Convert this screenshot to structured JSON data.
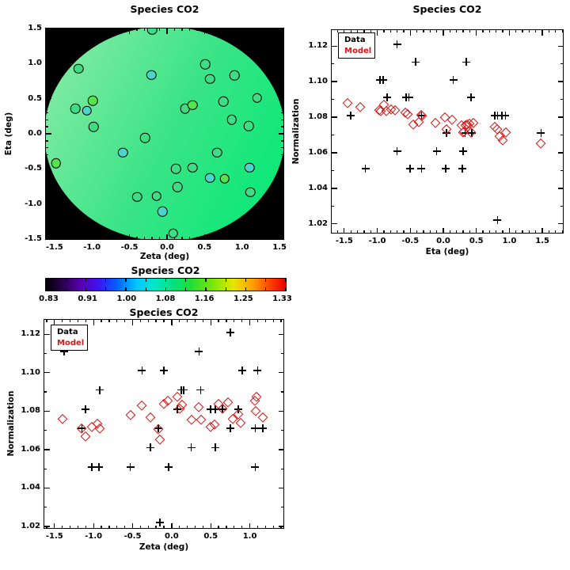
{
  "figure": {
    "background": "#ffffff",
    "frame_color": "#000000",
    "model_color": "#dc1414"
  },
  "chart_data": [
    {
      "type": "map",
      "title": "Species CO2",
      "xlabel": "Zeta (deg)",
      "ylabel": "Eta (deg)",
      "xrange": [
        -1.614,
        1.551
      ],
      "yrange": [
        -1.5,
        1.5
      ],
      "xminor": 0.1,
      "yminor": 0.1,
      "xticks": {
        "values": [
          -1.5,
          -1.0,
          -0.5,
          0.0,
          0.5,
          1.0,
          1.5
        ],
        "labels": [
          "-1.5",
          "-1.0",
          "-0.5",
          "0.0",
          "0.5",
          "1.0",
          "1.5"
        ]
      },
      "yticks": {
        "values": [
          -1.5,
          -1.0,
          -0.5,
          0.0,
          0.5,
          1.0,
          1.5
        ],
        "labels": [
          "-1.5",
          "-1.0",
          "-0.5",
          "0.0",
          "0.5",
          "1.0",
          "1.5"
        ]
      },
      "background": "#000000",
      "disk_gradient": [
        "#8feca8",
        "#3ce487",
        "#00e973"
      ],
      "points": [
        {
          "zeta": -0.2,
          "eta": 1.48,
          "fill": "#3fdc86"
        },
        {
          "zeta": -1.18,
          "eta": 0.93,
          "fill": "#3fdc86"
        },
        {
          "zeta": -0.21,
          "eta": 0.84,
          "fill": "#49d4cc"
        },
        {
          "zeta": 0.51,
          "eta": 0.99,
          "fill": "#3fdc86"
        },
        {
          "zeta": 0.57,
          "eta": 0.78,
          "fill": "#3fdc86"
        },
        {
          "zeta": 0.9,
          "eta": 0.83,
          "fill": "#3fdc86"
        },
        {
          "zeta": 1.2,
          "eta": 0.51,
          "fill": "#3fdc86"
        },
        {
          "zeta": -0.99,
          "eta": 0.47,
          "fill": "#55e34e"
        },
        {
          "zeta": -1.22,
          "eta": 0.36,
          "fill": "#3fdc86"
        },
        {
          "zeta": -1.07,
          "eta": 0.33,
          "fill": "#49d4cc"
        },
        {
          "zeta": 0.24,
          "eta": 0.36,
          "fill": "#3fdc86"
        },
        {
          "zeta": 0.34,
          "eta": 0.41,
          "fill": "#55e34e"
        },
        {
          "zeta": 0.75,
          "eta": 0.46,
          "fill": "#3fdc86"
        },
        {
          "zeta": 0.86,
          "eta": 0.2,
          "fill": "#3fdc86"
        },
        {
          "zeta": 1.09,
          "eta": 0.11,
          "fill": "#3fdc86"
        },
        {
          "zeta": -0.98,
          "eta": 0.1,
          "fill": "#3fdc86"
        },
        {
          "zeta": -0.29,
          "eta": -0.06,
          "fill": "#3fdc86"
        },
        {
          "zeta": -0.59,
          "eta": -0.27,
          "fill": "#49d4cc"
        },
        {
          "zeta": 0.67,
          "eta": -0.27,
          "fill": "#3fdc86"
        },
        {
          "zeta": -1.48,
          "eta": -0.42,
          "fill": "#55e34e"
        },
        {
          "zeta": 0.12,
          "eta": -0.5,
          "fill": "#3fdc86"
        },
        {
          "zeta": 0.34,
          "eta": -0.48,
          "fill": "#3fdc86"
        },
        {
          "zeta": 1.1,
          "eta": -0.48,
          "fill": "#49d4cc"
        },
        {
          "zeta": 0.57,
          "eta": -0.63,
          "fill": "#49d4cc"
        },
        {
          "zeta": 0.77,
          "eta": -0.64,
          "fill": "#55e34e"
        },
        {
          "zeta": 0.14,
          "eta": -0.76,
          "fill": "#3fdc86"
        },
        {
          "zeta": 1.11,
          "eta": -0.83,
          "fill": "#3fdc86"
        },
        {
          "zeta": -0.4,
          "eta": -0.9,
          "fill": "#3fdc86"
        },
        {
          "zeta": -0.14,
          "eta": -0.89,
          "fill": "#3fdc86"
        },
        {
          "zeta": -0.06,
          "eta": -1.11,
          "fill": "#49d4cc"
        },
        {
          "zeta": 0.08,
          "eta": -1.42,
          "fill": "#3fdc86"
        }
      ]
    },
    {
      "type": "scatter",
      "title": "Species CO2",
      "xlabel": "Eta (deg)",
      "ylabel": "Normalization",
      "xrange": [
        -1.69,
        1.81
      ],
      "yrange": [
        1.015,
        1.129
      ],
      "xminor": 0.1,
      "yminor": 0.01,
      "xticks": {
        "values": [
          -1.5,
          -1.0,
          -0.5,
          0.0,
          0.5,
          1.0,
          1.5
        ],
        "labels": [
          "-1.5",
          "-1.0",
          "-0.5",
          "0.0",
          "0.5",
          "1.0",
          "1.5"
        ]
      },
      "yticks": {
        "values": [
          1.02,
          1.04,
          1.06,
          1.08,
          1.1,
          1.12
        ],
        "labels": [
          "1.02",
          "1.04",
          "1.06",
          "1.08",
          "1.10",
          "1.12"
        ]
      },
      "legend": {
        "data_label": "Data",
        "model_label": "Model"
      },
      "series": [
        {
          "name": "Data",
          "marker": "plus",
          "color": "#000000",
          "x": [
            -1.4,
            -1.18,
            -0.96,
            -0.91,
            -0.85,
            -0.7,
            -0.7,
            -0.56,
            -0.52,
            -0.5,
            -0.42,
            -0.33,
            -0.33,
            -0.1,
            0.05,
            0.04,
            0.15,
            0.3,
            0.29,
            0.35,
            0.42,
            0.33,
            0.43,
            0.78,
            0.82,
            0.89,
            0.94,
            0.82,
            1.48
          ],
          "y": [
            1.081,
            1.051,
            1.101,
            1.101,
            1.091,
            1.121,
            1.061,
            1.091,
            1.091,
            1.051,
            1.111,
            1.081,
            1.051,
            1.061,
            1.071,
            1.051,
            1.101,
            1.061,
            1.051,
            1.111,
            1.091,
            1.071,
            1.071,
            1.081,
            1.081,
            1.081,
            1.081,
            1.022,
            1.071
          ]
        },
        {
          "name": "Model",
          "marker": "diamond",
          "color": "#dc1414",
          "x": [
            -1.45,
            -1.26,
            -0.97,
            -0.95,
            -0.9,
            -0.86,
            -0.79,
            -0.73,
            -0.57,
            -0.54,
            -0.45,
            -0.37,
            -0.34,
            -0.32,
            -0.12,
            0.02,
            0.05,
            0.13,
            0.28,
            0.3,
            0.31,
            0.33,
            0.36,
            0.4,
            0.42,
            0.46,
            0.78,
            0.81,
            0.85,
            0.9,
            0.95,
            1.48
          ],
          "y": [
            1.088,
            1.086,
            1.084,
            1.0835,
            1.087,
            1.0835,
            1.0845,
            1.084,
            1.0825,
            1.082,
            1.076,
            1.0775,
            1.0815,
            1.081,
            1.077,
            1.08,
            1.0735,
            1.0785,
            1.0755,
            1.0715,
            1.072,
            1.0755,
            1.076,
            1.0765,
            1.0715,
            1.077,
            1.0745,
            1.0735,
            1.0695,
            1.067,
            1.0715,
            1.0655
          ]
        }
      ]
    },
    {
      "type": "colorbar",
      "title": "Species CO2",
      "labels": [
        "0.83",
        "0.91",
        "1.00",
        "1.08",
        "1.16",
        "1.25",
        "1.33"
      ],
      "gradient": [
        "#000000",
        "#30005a",
        "#5a00b4",
        "#3c14f0",
        "#0064ff",
        "#00c8ff",
        "#00e6c8",
        "#00e180",
        "#1ede3c",
        "#7ee800",
        "#e6e600",
        "#ffa000",
        "#ff3c00",
        "#e80000"
      ]
    },
    {
      "type": "scatter",
      "title": "Species CO2",
      "xlabel": "Zeta (deg)",
      "ylabel": "Normalization",
      "xrange": [
        -1.63,
        1.43
      ],
      "yrange": [
        1.0192,
        1.1275
      ],
      "xminor": 0.1,
      "yminor": 0.01,
      "xticks": {
        "values": [
          -1.5,
          -1.0,
          -0.5,
          0.0,
          0.5,
          1.0
        ],
        "labels": [
          "-1.5",
          "-1.0",
          "-0.5",
          "0.0",
          "0.5",
          "1.0"
        ]
      },
      "yticks": {
        "values": [
          1.02,
          1.04,
          1.06,
          1.08,
          1.1,
          1.12
        ],
        "labels": [
          "1.02",
          "1.04",
          "1.06",
          "1.08",
          "1.10",
          "1.12"
        ]
      },
      "legend": {
        "data_label": "Data",
        "model_label": "Model"
      },
      "series": [
        {
          "name": "Data",
          "marker": "plus",
          "color": "#000000",
          "x": [
            -1.38,
            -1.15,
            -1.1,
            -1.02,
            -0.93,
            -0.92,
            -0.53,
            -0.38,
            -0.27,
            -0.17,
            -0.15,
            -0.1,
            -0.04,
            0.07,
            0.12,
            0.15,
            0.25,
            0.35,
            0.37,
            0.5,
            0.56,
            0.56,
            0.65,
            0.75,
            0.75,
            0.85,
            0.9,
            1.1,
            1.07,
            1.17,
            1.07
          ],
          "y": [
            1.111,
            1.071,
            1.081,
            1.051,
            1.051,
            1.091,
            1.051,
            1.101,
            1.061,
            1.071,
            1.022,
            1.101,
            1.051,
            1.081,
            1.091,
            1.091,
            1.061,
            1.111,
            1.091,
            1.081,
            1.081,
            1.061,
            1.081,
            1.121,
            1.071,
            1.081,
            1.101,
            1.101,
            1.071,
            1.071,
            1.051
          ]
        },
        {
          "name": "Model",
          "marker": "diamond",
          "color": "#dc1414",
          "x": [
            -1.4,
            -1.15,
            -1.1,
            -1.02,
            -0.95,
            -0.92,
            -0.53,
            -0.38,
            -0.27,
            -0.17,
            -0.15,
            -0.1,
            -0.05,
            0.07,
            0.1,
            0.13,
            0.25,
            0.35,
            0.38,
            0.5,
            0.55,
            0.6,
            0.65,
            0.72,
            0.78,
            0.85,
            0.88,
            1.07,
            1.09,
            1.08,
            1.17
          ],
          "y": [
            1.076,
            1.071,
            1.067,
            1.072,
            1.0735,
            1.071,
            1.078,
            1.083,
            1.077,
            1.0705,
            1.0655,
            1.084,
            1.0855,
            1.0875,
            1.0815,
            1.0835,
            1.0755,
            1.082,
            1.0755,
            1.072,
            1.073,
            1.084,
            1.0815,
            1.0845,
            1.076,
            1.0785,
            1.074,
            1.0855,
            1.0875,
            1.08,
            1.077
          ]
        }
      ]
    }
  ]
}
